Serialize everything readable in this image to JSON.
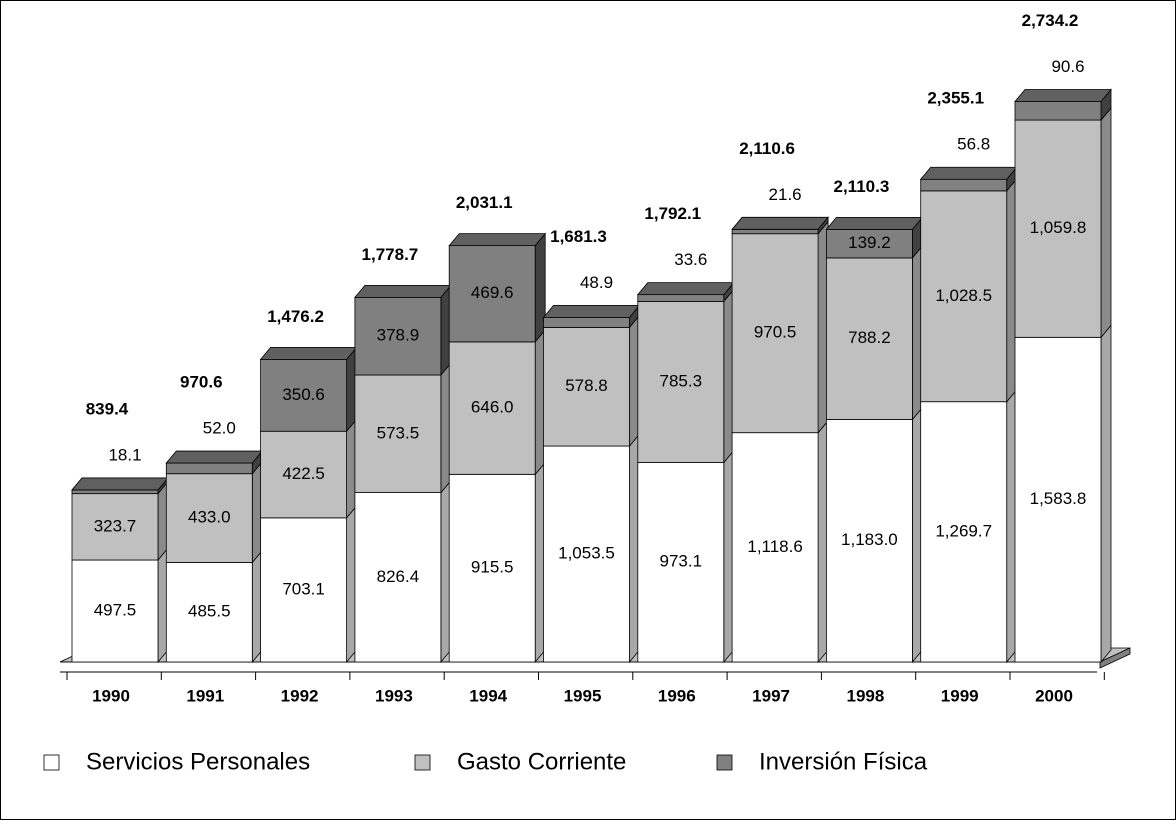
{
  "chart_data": {
    "type": "bar3d_stacked",
    "categories": [
      "1990",
      "1991",
      "1992",
      "1993",
      "1994",
      "1995",
      "1996",
      "1997",
      "1998",
      "1999",
      "2000"
    ],
    "series": [
      {
        "name": "Servicios Personales",
        "color": "#ffffff",
        "side": "#a8a8a8",
        "values": [
          497.5,
          485.5,
          703.1,
          826.4,
          915.5,
          1053.5,
          973.1,
          1118.6,
          1183.0,
          1269.7,
          1583.8
        ],
        "value_labels": [
          "497.5",
          "485.5",
          "703.1",
          "826.4",
          "915.5",
          "1,053.5",
          "973.1",
          "1,118.6",
          "1,183.0",
          "1,269.7",
          "1,583.8"
        ]
      },
      {
        "name": "Gasto Corriente",
        "color": "#c0c0c0",
        "side": "#8a8a8a",
        "values": [
          323.7,
          433.0,
          422.5,
          573.5,
          646.0,
          578.8,
          785.3,
          970.5,
          788.2,
          1028.5,
          1059.8
        ],
        "value_labels": [
          "323.7",
          "433.0",
          "422.5",
          "573.5",
          "646.0",
          "578.8",
          "785.3",
          "970.5",
          "788.2",
          "1,028.5",
          "1,059.8"
        ]
      },
      {
        "name": "Inversión Física",
        "color": "#808080",
        "side": "#404040",
        "values": [
          18.1,
          52.0,
          350.6,
          378.9,
          469.6,
          48.9,
          33.6,
          21.6,
          139.2,
          56.8,
          90.6
        ],
        "value_labels": [
          "18.1",
          "52.0",
          "350.6",
          "378.9",
          "469.6",
          "48.9",
          "33.6",
          "21.6",
          "139.2",
          "56.8",
          "90.6"
        ]
      }
    ],
    "totals": {
      "values": [
        839.4,
        970.6,
        1476.2,
        1778.7,
        2031.1,
        1681.3,
        1792.1,
        2110.6,
        2110.3,
        2355.1,
        2734.2
      ],
      "value_labels": [
        "839.4",
        "970.6",
        "1,476.2",
        "1,778.7",
        "2,031.1",
        "1,681.3",
        "1,792.1",
        "2,110.6",
        "2,110.3",
        "2,355.1",
        "2,734.2"
      ]
    }
  }
}
